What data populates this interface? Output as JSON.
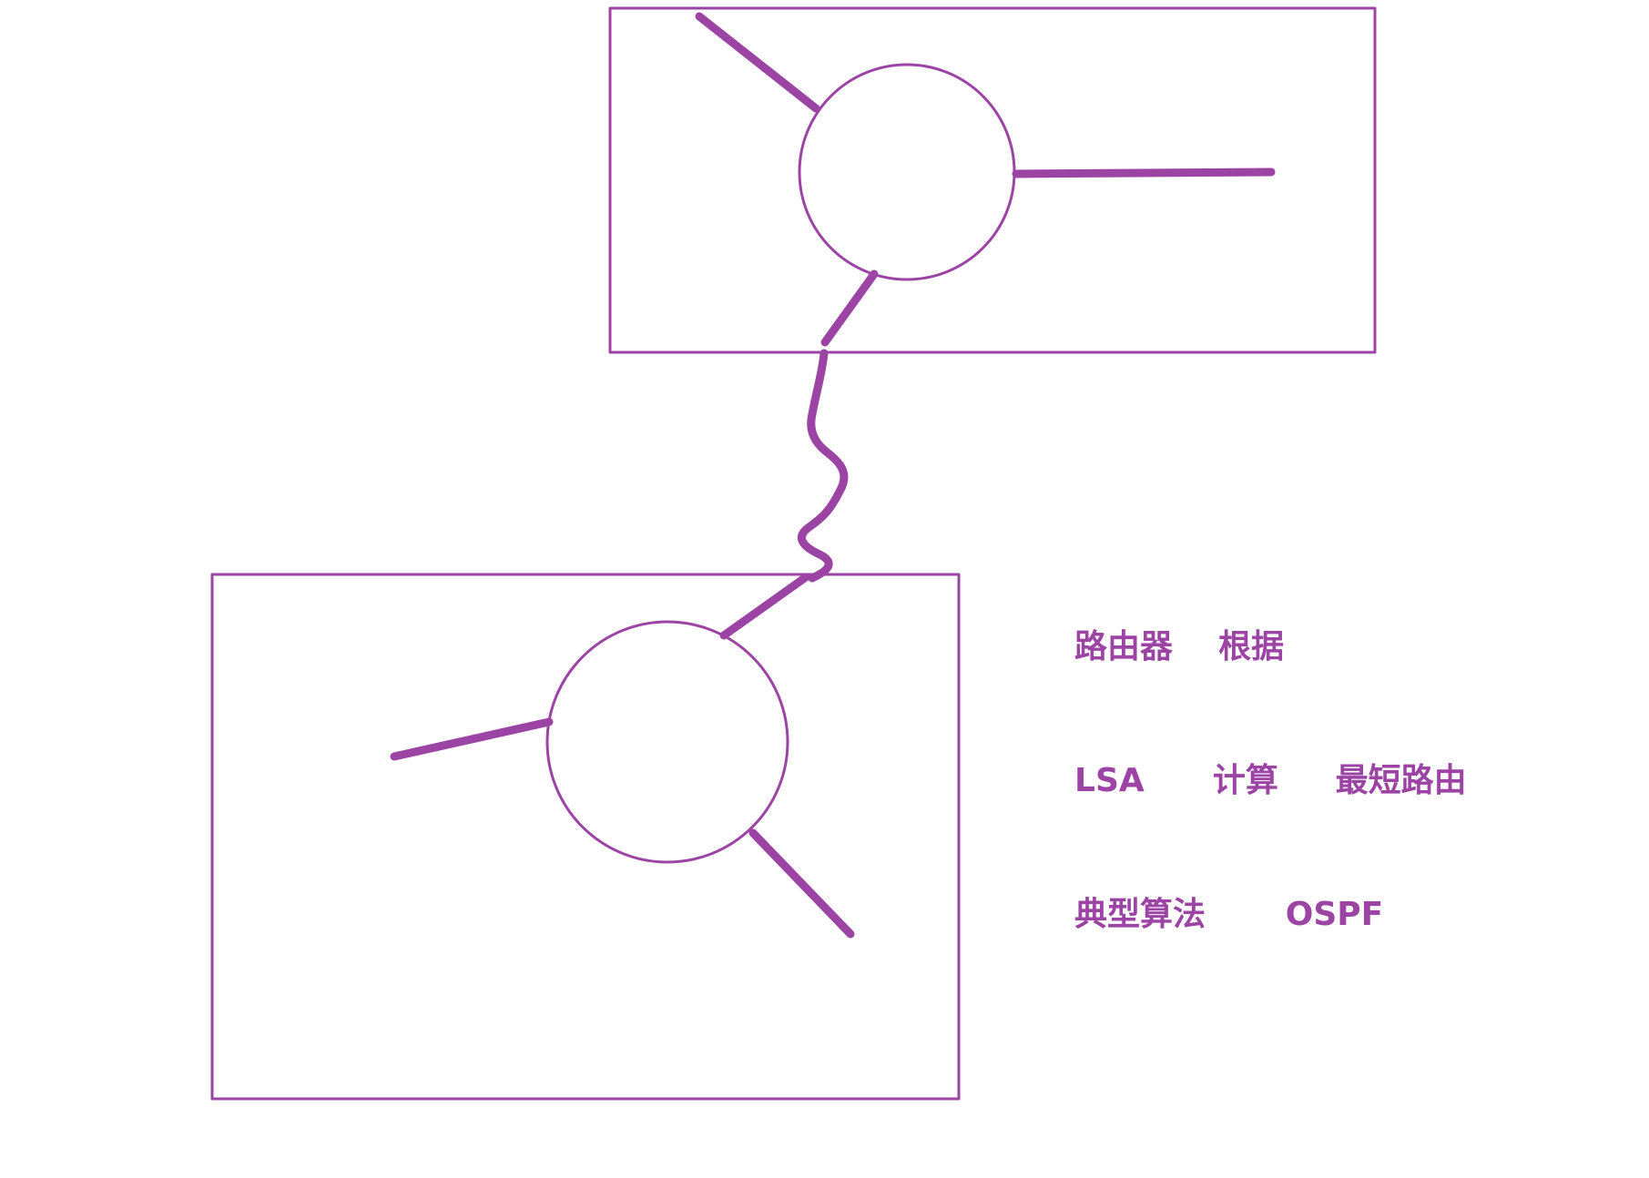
{
  "colors": {
    "accent": "#9c44a4",
    "background": "#ffffff"
  },
  "notes": {
    "line1": "路由器    根据",
    "line2": "LSA      计算     最短路由",
    "line3": "典型算法       OSPF"
  }
}
